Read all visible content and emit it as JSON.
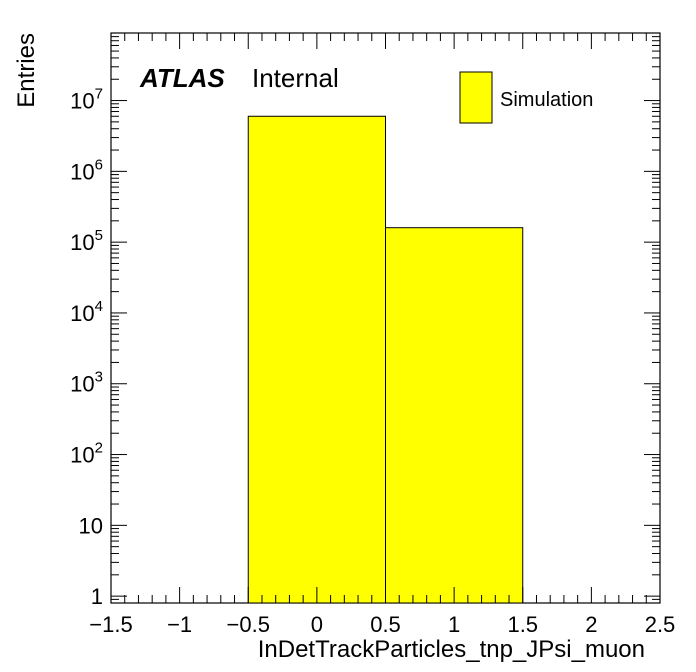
{
  "chart_data": {
    "type": "bar",
    "y_scale": "log",
    "xlabel": "InDetTrackParticles_tnp_JPsi_muon",
    "ylabel": "Entries",
    "xlim": [
      -1.5,
      2.5
    ],
    "ylim": [
      0.8,
      90000000
    ],
    "bins": [
      {
        "x_low": -0.5,
        "x_high": 0.5,
        "value": 6000000
      },
      {
        "x_low": 0.5,
        "x_high": 1.5,
        "value": 160000
      }
    ],
    "x_ticks": [
      "−1.5",
      "−1",
      "−0.5",
      "0",
      "0.5",
      "1",
      "1.5",
      "2",
      "2.5"
    ],
    "x_tick_values": [
      -1.5,
      -1,
      -0.5,
      0,
      0.5,
      1,
      1.5,
      2,
      2.5
    ],
    "y_tick_values": [
      1,
      10,
      100,
      1000,
      10000,
      100000,
      1000000,
      10000000
    ],
    "y_tick_labels": [
      {
        "base": "1",
        "exp": ""
      },
      {
        "base": "10",
        "exp": ""
      },
      {
        "base": "10",
        "exp": "2"
      },
      {
        "base": "10",
        "exp": "3"
      },
      {
        "base": "10",
        "exp": "4"
      },
      {
        "base": "10",
        "exp": "5"
      },
      {
        "base": "10",
        "exp": "6"
      },
      {
        "base": "10",
        "exp": "7"
      }
    ],
    "fill_color": "#ffff00",
    "edge_color": "#000000",
    "legend": {
      "entries": [
        "Simulation"
      ],
      "placement": "top-right"
    },
    "label_atlas": "ATLAS",
    "label_status": "Internal",
    "grid": false
  }
}
